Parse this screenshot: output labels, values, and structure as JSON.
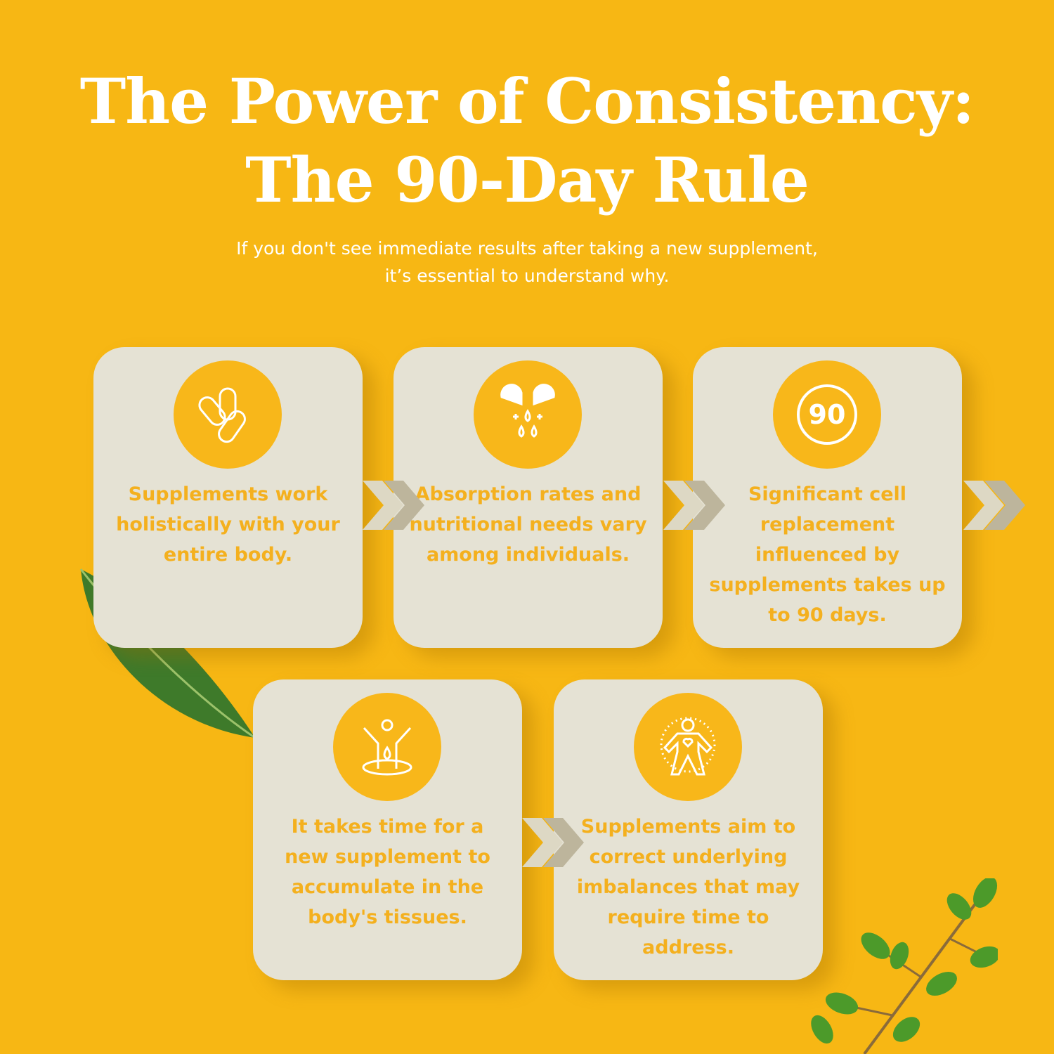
{
  "header": {
    "title_line1": "The Power of Consistency:",
    "title_line2": "The 90-Day Rule",
    "subtitle_line1": "If you don't see immediate results after taking a new supplement,",
    "subtitle_line2": "it’s essential to understand why."
  },
  "cards": [
    {
      "icon": "pills-icon",
      "text": "Supplements work holistically with your entire body."
    },
    {
      "icon": "capsule-drops-icon",
      "text": "Absorption rates and nutritional needs vary among individuals."
    },
    {
      "icon": "ninety-days-icon",
      "icon_text": "90",
      "text": "Significant cell replacement influenced by supplements takes up to 90 days."
    },
    {
      "icon": "body-absorption-icon",
      "text": "It takes time for a new supplement to accumulate in the body's tissues."
    },
    {
      "icon": "body-heart-icon",
      "text": "Supplements aim to correct underlying imbalances that may require time to address."
    }
  ],
  "colors": {
    "background": "#F7B714",
    "card": "#E5E2D4",
    "accent": "#F8B71A",
    "card_text": "#F4B01E",
    "chevron_light": "#DDD8C4",
    "chevron_dark": "#BDB59C"
  }
}
